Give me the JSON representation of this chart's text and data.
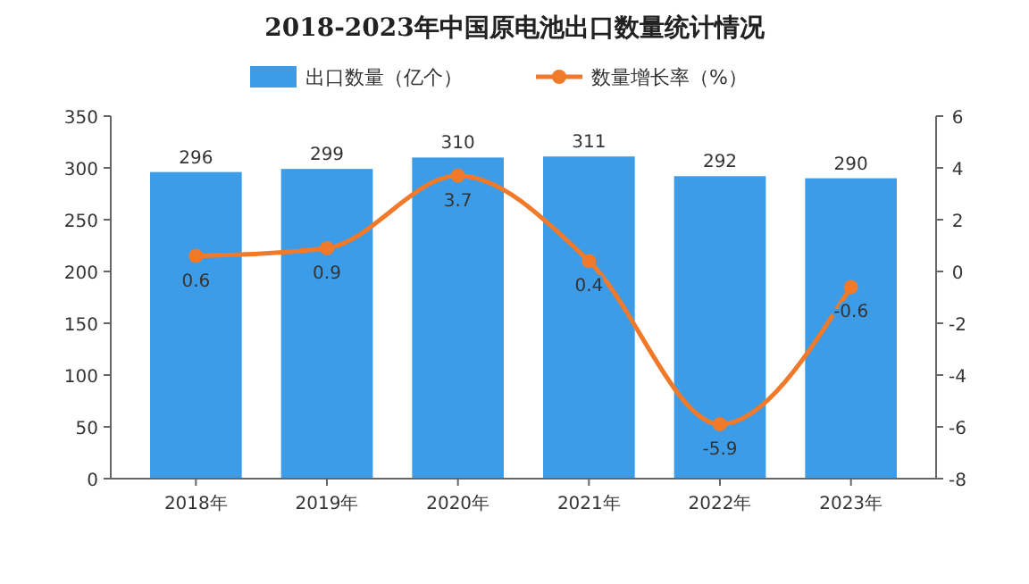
{
  "chart_data": {
    "type": "bar",
    "title": "2018-2023年中国原电池出口数量统计情况",
    "categories": [
      "2018年",
      "2019年",
      "2020年",
      "2021年",
      "2022年",
      "2023年"
    ],
    "series": [
      {
        "name": "出口数量（亿个）",
        "color": "#3d9ce8",
        "values": [
          296,
          299,
          310,
          311,
          292,
          290
        ]
      },
      {
        "name": "数量增长率（%）",
        "type": "line",
        "axis": "y2",
        "color": "#f07a2a",
        "values": [
          0.6,
          0.9,
          3.7,
          0.4,
          -5.9,
          -0.6
        ]
      }
    ],
    "ylim": [
      0,
      350
    ],
    "yticks": [
      0,
      50,
      100,
      150,
      200,
      250,
      300,
      350
    ],
    "y2lim": [
      -8,
      6
    ],
    "y2ticks": [
      -8,
      -6,
      -4,
      -2,
      0,
      2,
      4,
      6
    ],
    "data_labels": true,
    "legend": "top",
    "marker": "circle",
    "grid": false
  }
}
